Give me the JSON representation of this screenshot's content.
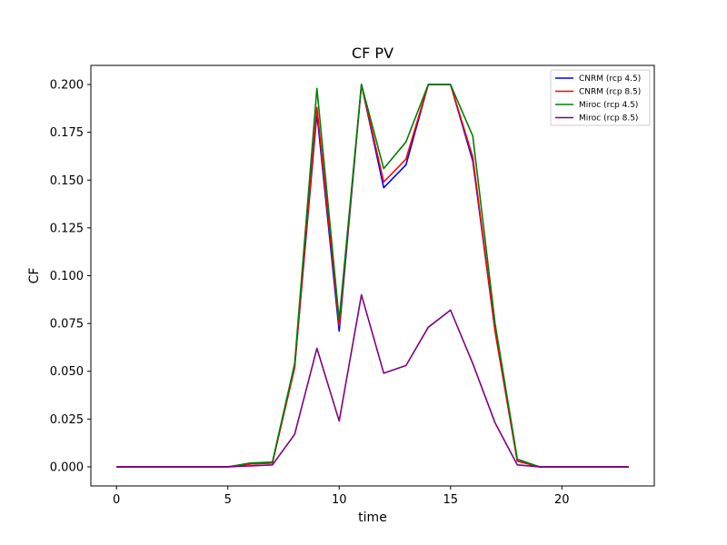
{
  "chart_data": {
    "type": "line",
    "title": "CF PV",
    "xlabel": "time",
    "ylabel": "CF",
    "xlim": [
      -1.15,
      24.15
    ],
    "ylim": [
      -0.01,
      0.21
    ],
    "xticks": [
      0,
      5,
      10,
      15,
      20
    ],
    "yticks": [
      0.0,
      0.025,
      0.05,
      0.075,
      0.1,
      0.125,
      0.15,
      0.175,
      0.2
    ],
    "ytick_labels": [
      "0.000",
      "0.025",
      "0.050",
      "0.075",
      "0.100",
      "0.125",
      "0.150",
      "0.175",
      "0.200"
    ],
    "grid": false,
    "legend_position": "top-right",
    "x": [
      0,
      1,
      2,
      3,
      4,
      5,
      6,
      7,
      8,
      9,
      10,
      11,
      12,
      13,
      14,
      15,
      16,
      17,
      18,
      19,
      20,
      21,
      22,
      23
    ],
    "series": [
      {
        "name": "CNRM (rcp 4.5)",
        "color": "#0000ff",
        "values": [
          0,
          0,
          0,
          0,
          0,
          0,
          0.0015,
          0.002,
          0.052,
          0.185,
          0.071,
          0.2,
          0.146,
          0.158,
          0.2,
          0.2,
          0.16,
          0.071,
          0.003,
          0,
          0,
          0,
          0,
          0
        ]
      },
      {
        "name": "CNRM (rcp 8.5)",
        "color": "#ff0000",
        "values": [
          0,
          0,
          0,
          0,
          0,
          0,
          0.0015,
          0.002,
          0.052,
          0.188,
          0.074,
          0.2,
          0.149,
          0.161,
          0.2,
          0.2,
          0.162,
          0.071,
          0.003,
          0,
          0,
          0,
          0,
          0
        ]
      },
      {
        "name": "Miroc (rcp 4.5)",
        "color": "#008000",
        "values": [
          0,
          0,
          0,
          0,
          0,
          0,
          0.002,
          0.0025,
          0.054,
          0.198,
          0.077,
          0.2,
          0.156,
          0.17,
          0.2,
          0.2,
          0.173,
          0.075,
          0.004,
          0,
          0,
          0,
          0,
          0
        ]
      },
      {
        "name": "Miroc (rcp 8.5)",
        "color": "#800080",
        "values": [
          0,
          0,
          0,
          0,
          0,
          0,
          0.0005,
          0.001,
          0.017,
          0.062,
          0.024,
          0.09,
          0.049,
          0.053,
          0.073,
          0.082,
          0.054,
          0.023,
          0.001,
          0,
          0,
          0,
          0,
          0
        ]
      }
    ]
  }
}
